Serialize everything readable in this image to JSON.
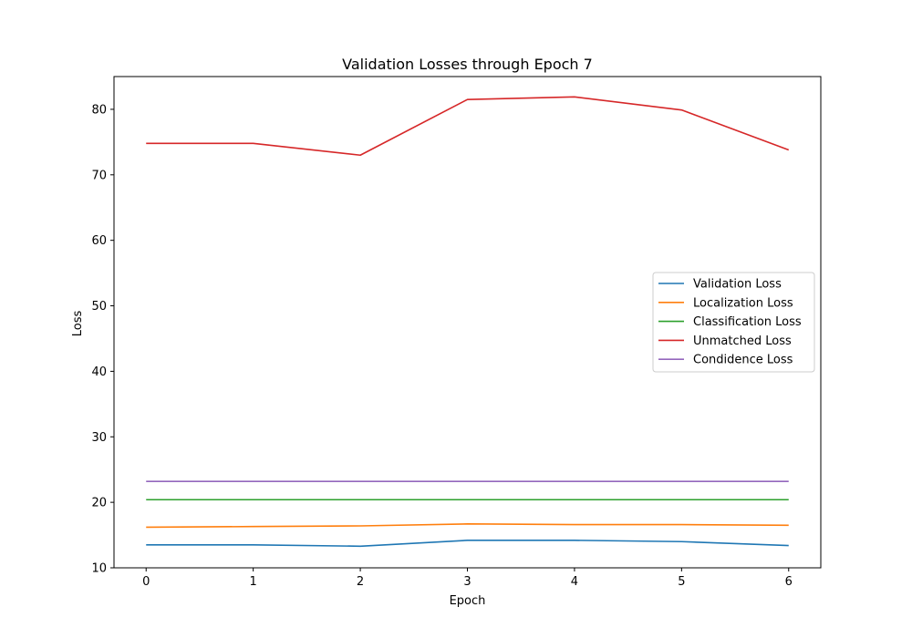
{
  "chart_data": {
    "type": "line",
    "title": "Validation Losses through Epoch 7",
    "xlabel": "Epoch",
    "ylabel": "Loss",
    "x": [
      0,
      1,
      2,
      3,
      4,
      5,
      6
    ],
    "xticks": [
      0,
      1,
      2,
      3,
      4,
      5,
      6
    ],
    "yticks": [
      10,
      20,
      30,
      40,
      50,
      60,
      70,
      80
    ],
    "xlim": [
      -0.3,
      6.3
    ],
    "ylim": [
      10,
      85
    ],
    "grid": false,
    "legend_position": "center-right",
    "series": [
      {
        "name": "Validation Loss",
        "color": "#1f77b4",
        "values": [
          13.5,
          13.5,
          13.3,
          14.2,
          14.2,
          14.0,
          13.4
        ]
      },
      {
        "name": "Localization Loss",
        "color": "#ff7f0e",
        "values": [
          16.2,
          16.3,
          16.4,
          16.7,
          16.6,
          16.6,
          16.5
        ]
      },
      {
        "name": "Classification Loss",
        "color": "#2ca02c",
        "values": [
          20.4,
          20.4,
          20.4,
          20.4,
          20.4,
          20.4,
          20.4
        ]
      },
      {
        "name": "Unmatched Loss",
        "color": "#d62728",
        "values": [
          74.8,
          74.8,
          73.0,
          81.5,
          81.9,
          79.9,
          73.8
        ]
      },
      {
        "name": "Condidence Loss",
        "color": "#9467bd",
        "values": [
          23.2,
          23.2,
          23.2,
          23.2,
          23.2,
          23.2,
          23.2
        ]
      }
    ]
  }
}
